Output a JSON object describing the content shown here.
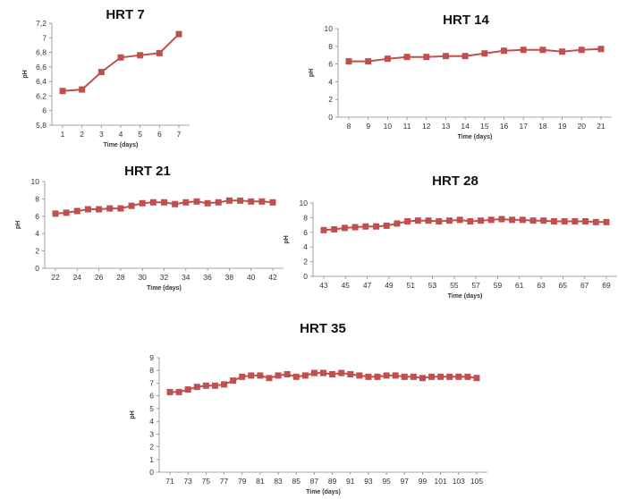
{
  "style": {
    "series_color": "#c0504d"
  },
  "chart_data": [
    {
      "type": "line",
      "title": "HRT 7",
      "xlabel": "Time (days)",
      "ylabel": "pH",
      "ylim": [
        5.8,
        7.2
      ],
      "yticks": [
        "5,8",
        "6",
        "6,2",
        "6,4",
        "6,6",
        "6,8",
        "7",
        "7,2"
      ],
      "xticks": [
        "1",
        "2",
        "3",
        "4",
        "5",
        "6",
        "7"
      ],
      "x": [
        1,
        2,
        3,
        4,
        5,
        6,
        7
      ],
      "y": [
        6.27,
        6.29,
        6.53,
        6.73,
        6.76,
        6.79,
        7.05
      ]
    },
    {
      "type": "line",
      "title": "HRT 14",
      "xlabel": "Time (days)",
      "ylabel": "pH",
      "ylim": [
        0,
        10
      ],
      "yticks": [
        "0",
        "2",
        "4",
        "6",
        "8",
        "10"
      ],
      "xticks": [
        "8",
        "9",
        "10",
        "11",
        "12",
        "13",
        "14",
        "15",
        "16",
        "17",
        "18",
        "19",
        "20",
        "21"
      ],
      "x": [
        8,
        9,
        10,
        11,
        12,
        13,
        14,
        15,
        16,
        17,
        18,
        19,
        20,
        21
      ],
      "y": [
        6.3,
        6.3,
        6.6,
        6.8,
        6.8,
        6.9,
        6.9,
        7.2,
        7.5,
        7.6,
        7.6,
        7.4,
        7.6,
        7.7
      ]
    },
    {
      "type": "line",
      "title": "HRT 21",
      "xlabel": "Time (days)",
      "ylabel": "pH",
      "ylim": [
        0,
        10
      ],
      "yticks": [
        "0",
        "2",
        "4",
        "6",
        "8",
        "10"
      ],
      "xticks": [
        "22",
        "24",
        "26",
        "28",
        "30",
        "32",
        "34",
        "36",
        "38",
        "40",
        "42"
      ],
      "x": [
        22,
        23,
        24,
        25,
        26,
        27,
        28,
        29,
        30,
        31,
        32,
        33,
        34,
        35,
        36,
        37,
        38,
        39,
        40,
        41,
        42
      ],
      "y": [
        6.3,
        6.4,
        6.6,
        6.8,
        6.8,
        6.9,
        6.9,
        7.2,
        7.5,
        7.6,
        7.6,
        7.4,
        7.6,
        7.7,
        7.5,
        7.6,
        7.8,
        7.8,
        7.7,
        7.7,
        7.6
      ]
    },
    {
      "type": "line",
      "title": "HRT 28",
      "xlabel": "Time (days)",
      "ylabel": "pH",
      "ylim": [
        0,
        10
      ],
      "yticks": [
        "0",
        "2",
        "4",
        "6",
        "8",
        "10"
      ],
      "xticks": [
        "43",
        "45",
        "47",
        "49",
        "51",
        "53",
        "55",
        "57",
        "59",
        "61",
        "63",
        "65",
        "67",
        "69"
      ],
      "x": [
        43,
        44,
        45,
        46,
        47,
        48,
        49,
        50,
        51,
        52,
        53,
        54,
        55,
        56,
        57,
        58,
        59,
        60,
        61,
        62,
        63,
        64,
        65,
        66,
        67,
        68,
        69,
        70
      ],
      "y": [
        6.3,
        6.4,
        6.6,
        6.7,
        6.8,
        6.8,
        6.9,
        7.2,
        7.5,
        7.6,
        7.6,
        7.5,
        7.6,
        7.7,
        7.5,
        7.6,
        7.7,
        7.8,
        7.7,
        7.7,
        7.6,
        7.6,
        7.5,
        7.5,
        7.5,
        7.5,
        7.4,
        7.4
      ]
    },
    {
      "type": "line",
      "title": "HRT 35",
      "xlabel": "Time (days)",
      "ylabel": "pH",
      "ylim": [
        0,
        9
      ],
      "yticks": [
        "0",
        "1",
        "2",
        "3",
        "4",
        "5",
        "6",
        "7",
        "8",
        "9"
      ],
      "xticks": [
        "71",
        "73",
        "75",
        "77",
        "79",
        "81",
        "83",
        "85",
        "87",
        "89",
        "91",
        "93",
        "95",
        "97",
        "99",
        "101",
        "103",
        "105"
      ],
      "x": [
        71,
        72,
        73,
        74,
        75,
        76,
        77,
        78,
        79,
        80,
        81,
        82,
        83,
        84,
        85,
        86,
        87,
        88,
        89,
        90,
        91,
        92,
        93,
        94,
        95,
        96,
        97,
        98,
        99,
        100,
        101,
        102,
        103,
        104,
        105
      ],
      "y": [
        6.3,
        6.3,
        6.5,
        6.7,
        6.8,
        6.8,
        6.9,
        7.2,
        7.5,
        7.6,
        7.6,
        7.4,
        7.6,
        7.7,
        7.5,
        7.6,
        7.8,
        7.8,
        7.7,
        7.8,
        7.7,
        7.6,
        7.5,
        7.5,
        7.6,
        7.6,
        7.5,
        7.5,
        7.4,
        7.5,
        7.5,
        7.5,
        7.5,
        7.5,
        7.4
      ]
    }
  ]
}
